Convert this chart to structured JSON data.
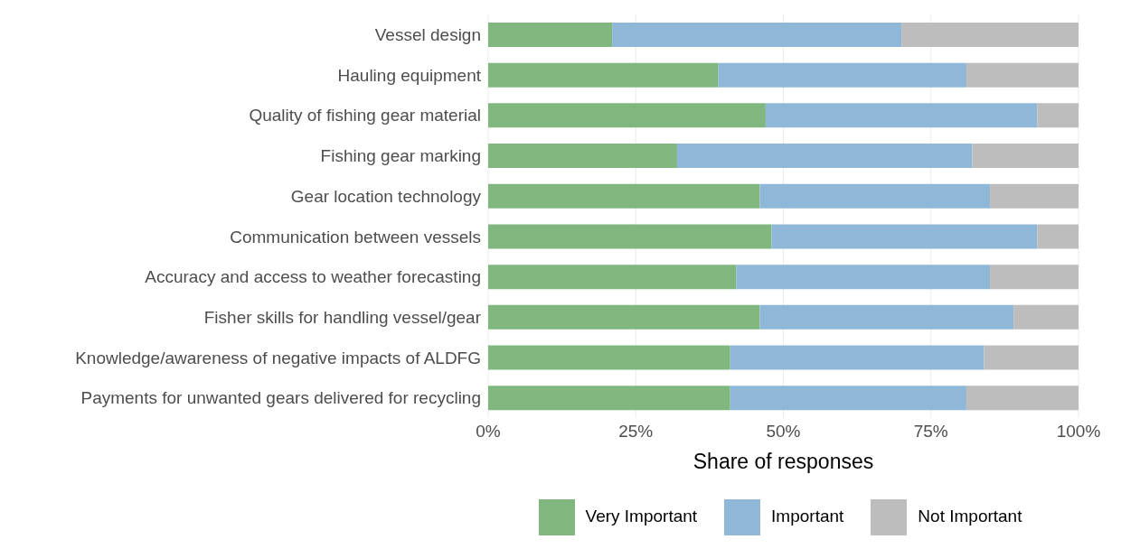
{
  "chart_data": {
    "type": "bar",
    "orientation": "horizontal",
    "stacked": true,
    "xlabel": "Share of responses",
    "categories": [
      "Vessel design",
      "Hauling equipment",
      "Quality of fishing gear material",
      "Fishing gear marking",
      "Gear location technology",
      "Communication between vessels",
      "Accuracy and access to weather forecasting",
      "Fisher skills for handling vessel/gear",
      "Knowledge/awareness of negative impacts of ALDFG",
      "Payments for unwanted gears delivered for recycling"
    ],
    "series": [
      {
        "name": "Very Important",
        "color": "#7fb77e",
        "values": [
          21,
          39,
          47,
          32,
          46,
          48,
          42,
          46,
          41,
          41
        ]
      },
      {
        "name": "Important",
        "color": "#8fb8d8",
        "values": [
          49,
          42,
          46,
          50,
          39,
          45,
          43,
          43,
          43,
          40
        ]
      },
      {
        "name": "Not Important",
        "color": "#bdbdbd",
        "values": [
          30,
          19,
          7,
          18,
          15,
          7,
          15,
          11,
          16,
          19
        ]
      }
    ],
    "xlim": [
      0,
      100
    ],
    "xticks": [
      {
        "value": 0,
        "label": "0%"
      },
      {
        "value": 25,
        "label": "25%"
      },
      {
        "value": 50,
        "label": "50%"
      },
      {
        "value": 75,
        "label": "75%"
      },
      {
        "value": 100,
        "label": "100%"
      }
    ],
    "grid": "x",
    "legend": "bottom"
  }
}
